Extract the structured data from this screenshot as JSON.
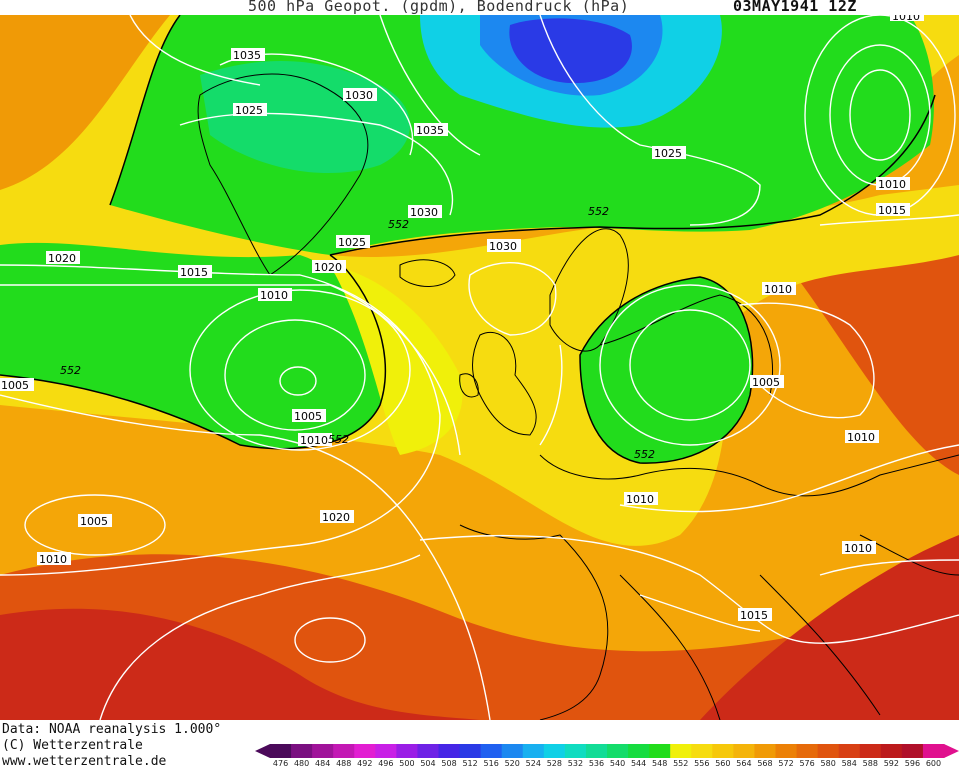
{
  "header": {
    "title": "500 hPa Geopot. (gpdm), Bodendruck (hPa)",
    "date": "03MAY1941 12Z"
  },
  "footer": {
    "line1": "Data: NOAA reanalysis 1.000°",
    "line2": "(C) Wetterzentrale",
    "line3": "www.wetterzentrale.de"
  },
  "legend": {
    "values": [
      "476",
      "480",
      "484",
      "488",
      "492",
      "496",
      "500",
      "504",
      "508",
      "512",
      "516",
      "520",
      "524",
      "528",
      "532",
      "536",
      "540",
      "544",
      "548",
      "552",
      "556",
      "560",
      "564",
      "568",
      "572",
      "576",
      "580",
      "584",
      "588",
      "592",
      "596",
      "600"
    ],
    "colors": [
      "#4b0a5a",
      "#7a0f80",
      "#a0139a",
      "#c318b4",
      "#e21ed2",
      "#c820e6",
      "#9a1ee6",
      "#6e22e6",
      "#4626e6",
      "#2a3ae6",
      "#2060f0",
      "#1c88f0",
      "#18b0f0",
      "#10d0e6",
      "#10dcc0",
      "#12dc96",
      "#14dc6a",
      "#16dc40",
      "#22dc1c",
      "#f0f00a",
      "#f6dc10",
      "#f6c80a",
      "#f4b40a",
      "#f09a06",
      "#ec8006",
      "#e66a0a",
      "#e0540e",
      "#d84014",
      "#cc2a18",
      "#bc1a1c",
      "#b0102a",
      "#e0108e"
    ]
  },
  "isobars": {
    "labels": [
      "1035",
      "1025",
      "1030",
      "1035",
      "1025",
      "1010",
      "1015",
      "1025",
      "1030",
      "1020",
      "1030",
      "1020",
      "1015",
      "1010",
      "1005",
      "1005",
      "1010",
      "1005",
      "1010",
      "1020",
      "1010",
      "1010",
      "1010",
      "1010",
      "1005",
      "1015",
      "1010"
    ]
  },
  "geopotential": {
    "labels": [
      "552",
      "552",
      "552",
      "552",
      "552",
      "552"
    ]
  }
}
